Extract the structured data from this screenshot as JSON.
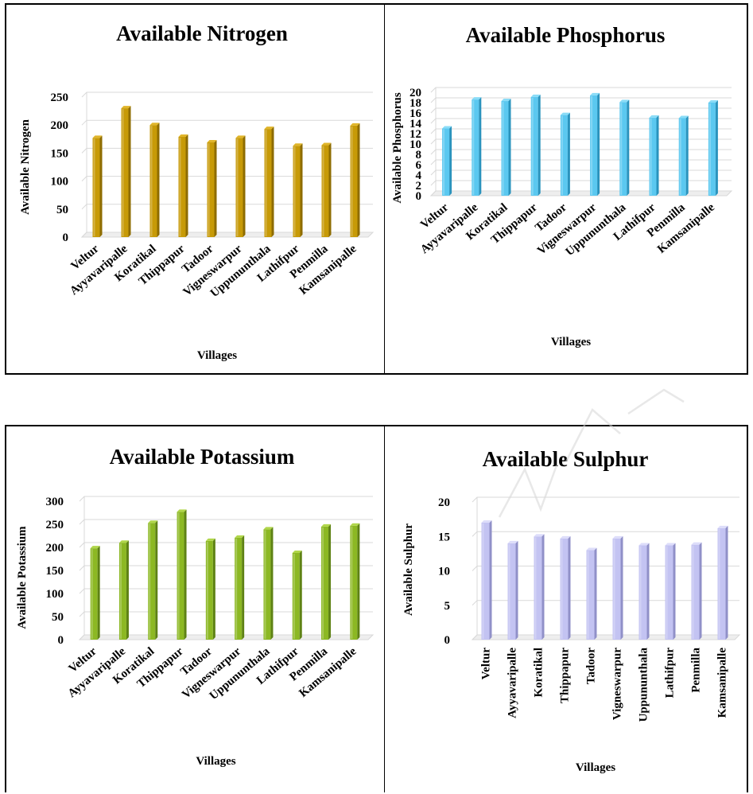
{
  "chart_data": [
    {
      "id": "nitrogen",
      "type": "bar",
      "title": "Available Nitrogen",
      "xlabel": "Villages",
      "ylabel": "Available Nitrogen",
      "categories": [
        "Veltur",
        "Ayyavaripalle",
        "Koratikal",
        "Thippapur",
        "Tadoor",
        "Vigneswarpur",
        "Uppununthala",
        "Lathifpur",
        "Penmilla",
        "Kamsanipalle"
      ],
      "values": [
        177,
        230,
        200,
        179,
        169,
        177,
        193,
        163,
        164,
        199
      ],
      "ylim": [
        0,
        250
      ],
      "yticks": [
        "0",
        "50",
        "100",
        "150",
        "200",
        "250"
      ],
      "xtick_rotation": "diagonal",
      "grid": true,
      "color": "#C79A07",
      "color_dark": "#8E6C00",
      "color_top": "#E0B52A"
    },
    {
      "id": "phosphorus",
      "type": "bar",
      "title": "Available Phosphorus",
      "xlabel": "Villages",
      "ylabel": "Available Phosphorus",
      "categories": [
        "Veltur",
        "Ayyavaripalle",
        "Koratikal",
        "Thippapur",
        "Tadoor",
        "Vigneswarpur",
        "Uppununthala",
        "Lathifpur",
        "Penmilla",
        "Kamsanipalle"
      ],
      "values": [
        13,
        18.6,
        18.3,
        19.1,
        15.6,
        19.4,
        18.1,
        15.1,
        15,
        18
      ],
      "ylim": [
        0,
        20
      ],
      "yticks": [
        "0",
        "2",
        "4",
        "6",
        "8",
        "10",
        "12",
        "14",
        "16",
        "18",
        "20"
      ],
      "xtick_rotation": "diagonal",
      "grid": true,
      "color": "#5BC8F0",
      "color_dark": "#2A93BD",
      "color_top": "#8ADCF7"
    },
    {
      "id": "potassium",
      "type": "bar",
      "title": "Available Potassium",
      "xlabel": "Villages",
      "ylabel": "Available Potassium",
      "categories": [
        "Veltur",
        "Ayyavaripalle",
        "Koratikal",
        "Thippapur",
        "Tadoor",
        "Vigneswarpur",
        "Uppununthala",
        "Lathifpur",
        "Penmilla",
        "Kamsanipalle"
      ],
      "values": [
        198,
        210,
        253,
        277,
        214,
        221,
        239,
        188,
        245,
        247
      ],
      "ylim": [
        0,
        300
      ],
      "yticks": [
        "0",
        "50",
        "100",
        "150",
        "200",
        "250",
        "300"
      ],
      "xtick_rotation": "diagonal",
      "grid": true,
      "color": "#8CB823",
      "color_dark": "#5E8214",
      "color_top": "#B0D64A"
    },
    {
      "id": "sulphur",
      "type": "bar",
      "title": "Available Sulphur",
      "xlabel": "Villages",
      "ylabel": "Available Sulphur",
      "categories": [
        "Veltur",
        "Ayyavaripalle",
        "Koratikal",
        "Thippapur",
        "Tadoor",
        "Vigneswarpur",
        "Uppununthala",
        "Lathifpur",
        "Penmilla",
        "Kamsanipalle"
      ],
      "values": [
        17,
        14,
        15,
        14.7,
        13,
        14.7,
        13.7,
        13.7,
        13.8,
        16.2
      ],
      "ylim": [
        0,
        20
      ],
      "yticks": [
        "0",
        "5",
        "10",
        "15",
        "20"
      ],
      "xtick_rotation": "vertical",
      "grid": true,
      "color": "#C3C3F2",
      "color_dark": "#9090C8",
      "color_top": "#DDDDFA"
    }
  ]
}
